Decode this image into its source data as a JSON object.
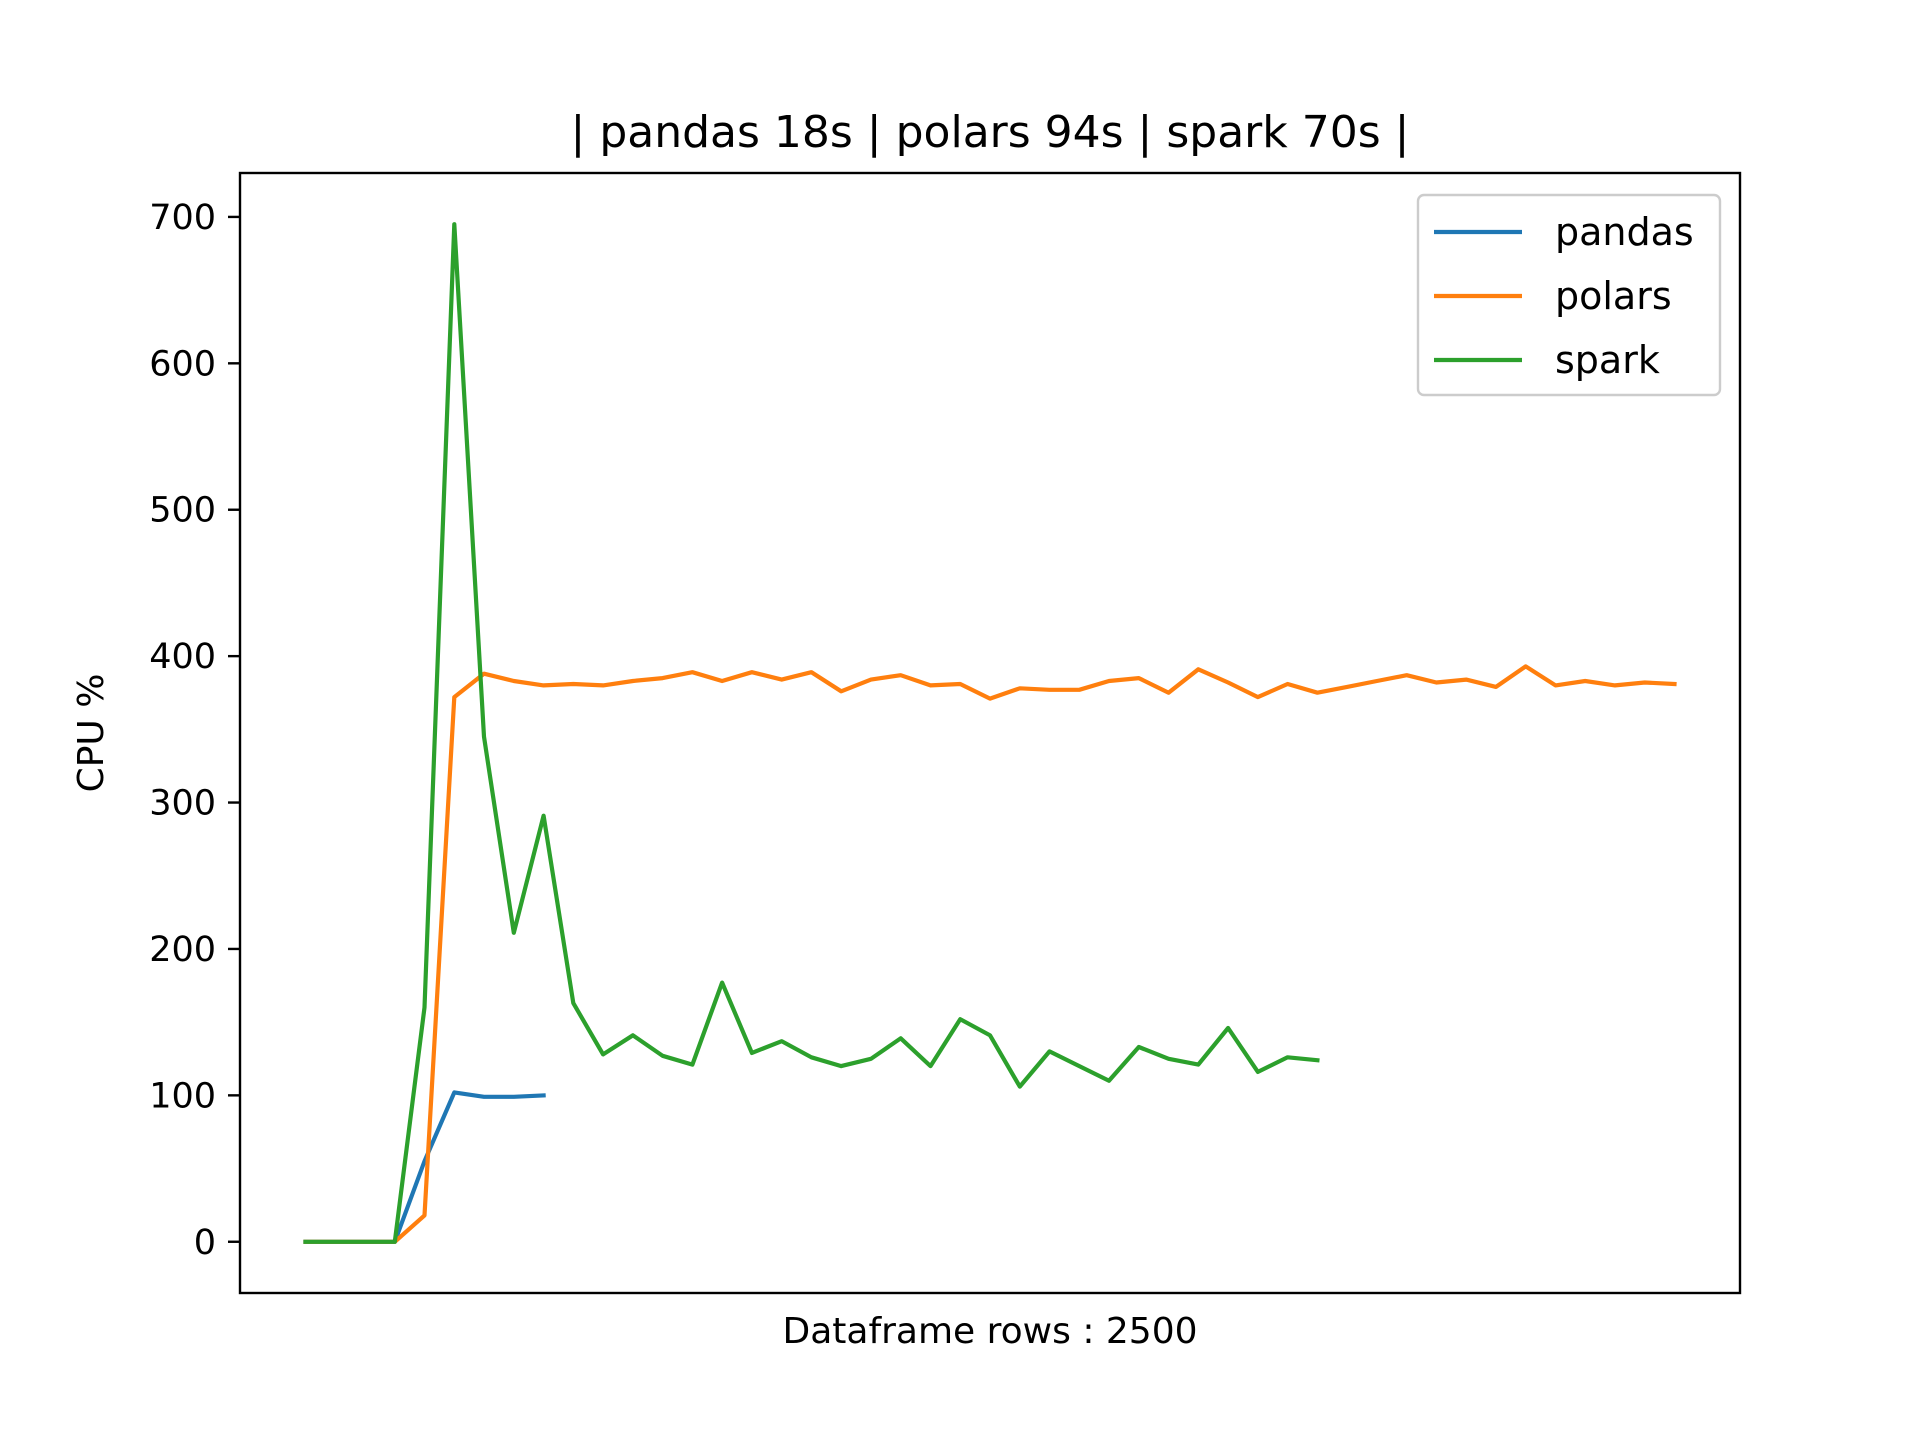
{
  "chart_data": {
    "type": "line",
    "title": "| pandas 18s | polars 94s | spark 70s |",
    "xlabel": "Dataframe rows : 2500",
    "ylabel": "CPU %",
    "x_ticks_visible": false,
    "xlim": [
      -2.2,
      48.2
    ],
    "ylim": [
      -35,
      730
    ],
    "yticks": [
      0,
      100,
      200,
      300,
      400,
      500,
      600,
      700
    ],
    "grid": false,
    "legend": {
      "placement": "top-right"
    },
    "series": [
      {
        "name": "pandas",
        "color": "#1f77b4",
        "values": [
          0,
          0,
          0,
          0,
          55,
          102,
          99,
          99,
          100
        ]
      },
      {
        "name": "polars",
        "color": "#ff7f0e",
        "values": [
          0,
          0,
          0,
          0,
          18,
          372,
          388,
          383,
          380,
          381,
          380,
          383,
          385,
          389,
          383,
          389,
          384,
          389,
          376,
          384,
          387,
          380,
          381,
          371,
          378,
          377,
          377,
          383,
          385,
          375,
          391,
          382,
          372,
          381,
          375,
          379,
          383,
          387,
          382,
          384,
          379,
          393,
          380,
          383,
          380,
          382,
          381
        ]
      },
      {
        "name": "spark",
        "color": "#2ca02c",
        "values": [
          0,
          0,
          0,
          0,
          160,
          695,
          345,
          211,
          291,
          163,
          128,
          141,
          127,
          121,
          177,
          129,
          137,
          126,
          120,
          125,
          139,
          120,
          152,
          141,
          106,
          130,
          120,
          110,
          133,
          125,
          121,
          146,
          116,
          126,
          124
        ]
      }
    ]
  }
}
